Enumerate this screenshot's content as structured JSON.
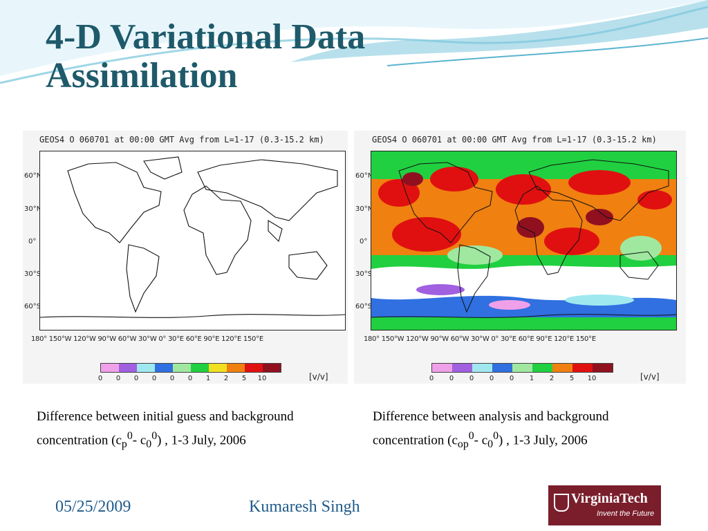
{
  "slide": {
    "title": "4-D Variational Data Assimilation",
    "date": "05/25/2009",
    "author": "Kumaresh Singh",
    "logo": {
      "name": "VirginiaTech",
      "tagline": "Invent the Future"
    }
  },
  "plots": [
    {
      "header": "GEOS4 O  060701 at 00:00 GMT Avg from L=1-17 (0.3-15.2 km)",
      "lat_labels": [
        "60°N",
        "30°N",
        "0°",
        "30°S",
        "60°S"
      ],
      "lon_labels": "180° 150°W 120°W 90°W 60°W 30°W 0° 30°E 60°E 90°E 120°E 150°E",
      "colorbar_ticks": [
        "0",
        "0",
        "0",
        "0",
        "0",
        "0",
        "1",
        "2",
        "5",
        "10"
      ],
      "units": "[v/v]",
      "caption_a": "Difference between initial guess and background concentration (c",
      "caption_sub1": "p",
      "caption_sup1": "0",
      "caption_b": "- c",
      "caption_sub2": "0",
      "caption_sup2": "0",
      "caption_c": ") , 1-3 July, 2006"
    },
    {
      "header": "GEOS4 O  060701 at 00:00 GMT Avg from L=1-17 (0.3-15.2 km)",
      "lat_labels": [
        "60°N",
        "30°N",
        "0°",
        "30°S",
        "60°S"
      ],
      "lon_labels": "180° 150°W 120°W 90°W 60°W 30°W 0° 30°E 60°E 90°E 120°E 150°E",
      "colorbar_ticks": [
        "0",
        "0",
        "0",
        "0",
        "0",
        "1",
        "2",
        "5",
        "10"
      ],
      "units": "[v/v]",
      "caption_a": "Difference between analysis and background concentration (c",
      "caption_sub1": "op",
      "caption_sup1": "0",
      "caption_b": "- c",
      "caption_sub2": "0",
      "caption_sup2": "0",
      "caption_c": ") , 1-3 July, 2006"
    }
  ],
  "colorbar_colors": [
    "#f0a0e8",
    "#a060e0",
    "#a0e8f0",
    "#3070e0",
    "#a0e8a0",
    "#20d040",
    "#f0e020",
    "#f08010",
    "#e01010",
    "#901020"
  ]
}
